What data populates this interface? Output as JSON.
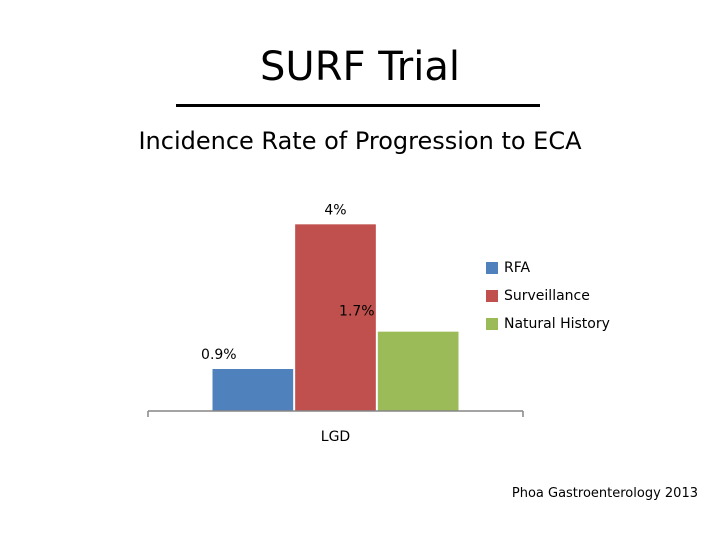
{
  "slide": {
    "title": "SURF Trial",
    "subtitle": "Incidence Rate of Progression to ECA",
    "citation": "Phoa Gastroenterology 2013"
  },
  "chart_data": {
    "type": "bar",
    "categories": [
      "LGD"
    ],
    "series": [
      {
        "name": "RFA",
        "values": [
          0.9
        ],
        "label": "0.9%",
        "color": "#4f81bd"
      },
      {
        "name": "Surveillance",
        "values": [
          4.0
        ],
        "label": "4%",
        "color": "#c0504d"
      },
      {
        "name": "Natural History",
        "values": [
          1.7
        ],
        "label": "1.7%",
        "color": "#9bbb59"
      }
    ],
    "ylim": [
      0,
      4.5
    ],
    "grid": false,
    "y_axis_visible": false,
    "legend_position": "right"
  }
}
